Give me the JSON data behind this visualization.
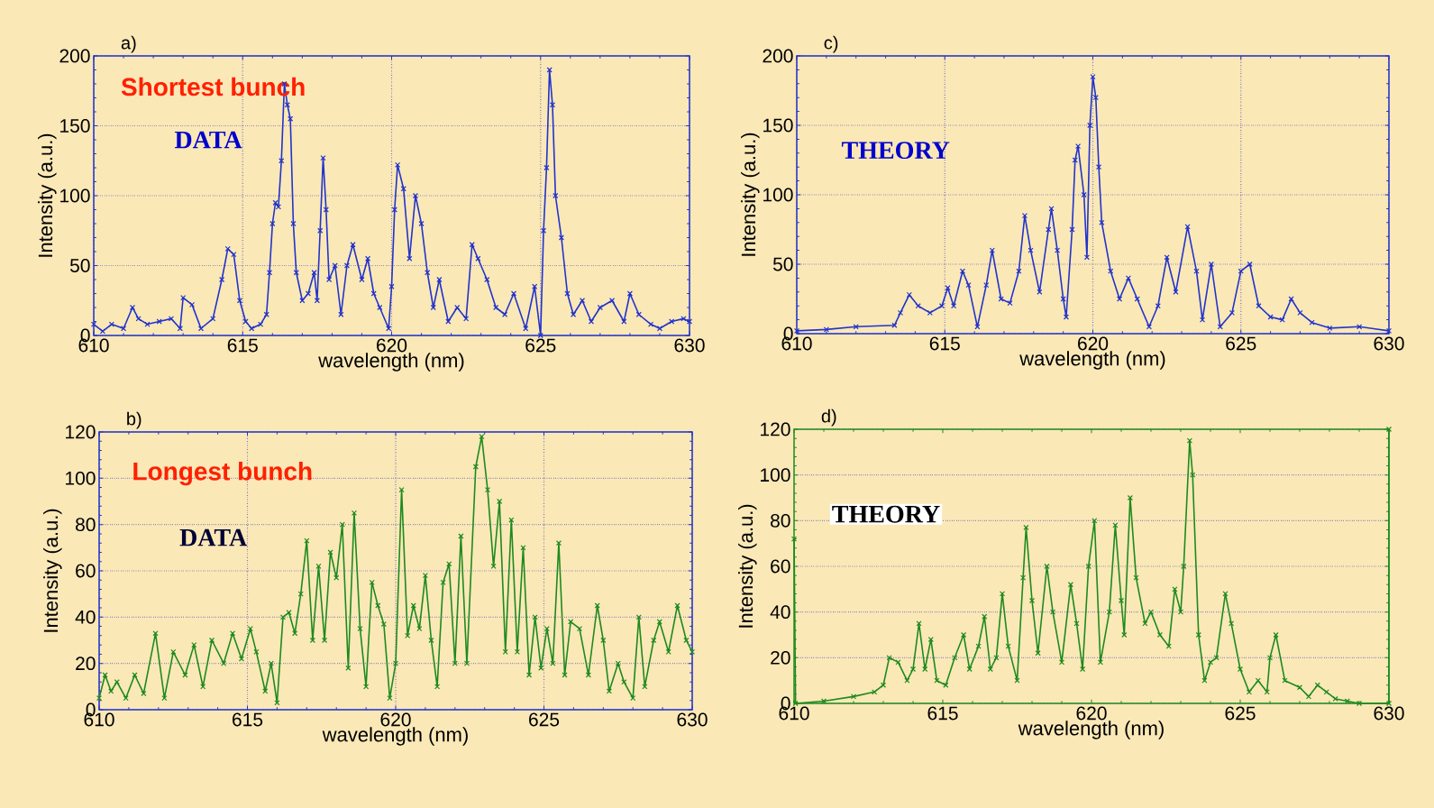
{
  "chart_data": [
    {
      "type": "line",
      "xlabel": "wavelength (nm)",
      "ylabel": "Intensity (a.u.)",
      "annotations": [
        "a)",
        "Shortest bunch",
        "DATA"
      ],
      "xlim": [
        610,
        630
      ],
      "ylim": [
        0,
        200
      ],
      "xticks": [
        610,
        615,
        620,
        625,
        630
      ],
      "yticks": [
        0,
        50,
        100,
        150,
        200
      ],
      "grid": true,
      "marker": "cross",
      "line_style": "solid",
      "x": [
        610.0,
        610.3,
        610.6,
        611.0,
        611.3,
        611.5,
        611.8,
        612.2,
        612.6,
        612.9,
        613.0,
        613.3,
        613.6,
        614.0,
        614.3,
        614.5,
        614.7,
        614.9,
        615.1,
        615.3,
        615.6,
        615.8,
        615.9,
        616.0,
        616.1,
        616.2,
        616.3,
        616.4,
        616.5,
        616.6,
        616.7,
        616.8,
        617.0,
        617.2,
        617.4,
        617.5,
        617.6,
        617.7,
        617.8,
        617.9,
        618.1,
        618.3,
        618.5,
        618.7,
        619.0,
        619.2,
        619.4,
        619.6,
        619.9,
        620.0,
        620.1,
        620.2,
        620.4,
        620.6,
        620.8,
        621.0,
        621.2,
        621.4,
        621.6,
        621.9,
        622.2,
        622.5,
        622.7,
        622.9,
        623.2,
        623.5,
        623.8,
        624.1,
        624.5,
        624.8,
        625.0,
        625.1,
        625.2,
        625.3,
        625.4,
        625.5,
        625.7,
        625.9,
        626.1,
        626.4,
        626.7,
        627.0,
        627.4,
        627.8,
        628.0,
        628.3,
        628.7,
        629.0,
        629.4,
        629.8,
        630.0
      ],
      "series": [
        {
          "color": "#2233cc",
          "values": [
            8,
            3,
            8,
            5,
            20,
            12,
            8,
            10,
            12,
            5,
            27,
            22,
            5,
            12,
            40,
            62,
            58,
            25,
            10,
            5,
            8,
            15,
            45,
            80,
            95,
            92,
            125,
            180,
            165,
            155,
            80,
            45,
            25,
            30,
            45,
            25,
            75,
            127,
            90,
            40,
            50,
            15,
            50,
            65,
            40,
            55,
            30,
            20,
            5,
            35,
            90,
            122,
            105,
            55,
            100,
            80,
            45,
            20,
            40,
            10,
            20,
            12,
            65,
            55,
            40,
            20,
            15,
            30,
            5,
            35,
            0,
            75,
            120,
            190,
            165,
            100,
            70,
            30,
            15,
            25,
            10,
            20,
            25,
            10,
            30,
            15,
            8,
            5,
            10,
            12,
            10
          ]
        }
      ]
    },
    {
      "type": "line",
      "xlabel": "wavelength (nm)",
      "ylabel": "Intensity (a.u.)",
      "annotations": [
        "c)",
        "THEORY"
      ],
      "xlim": [
        610,
        630
      ],
      "ylim": [
        0,
        200
      ],
      "xticks": [
        610,
        615,
        620,
        625,
        630
      ],
      "yticks": [
        0,
        50,
        100,
        150,
        200
      ],
      "grid": true,
      "marker": "cross",
      "line_style": "solid",
      "x": [
        610,
        611,
        612,
        613.3,
        613.5,
        613.8,
        614.1,
        614.5,
        614.9,
        615.1,
        615.3,
        615.6,
        615.8,
        616.1,
        616.4,
        616.6,
        616.9,
        617.2,
        617.5,
        617.7,
        617.9,
        618.2,
        618.5,
        618.6,
        618.8,
        619.0,
        619.1,
        619.3,
        619.4,
        619.5,
        619.7,
        619.8,
        619.9,
        620.0,
        620.1,
        620.2,
        620.3,
        620.6,
        620.9,
        621.2,
        621.5,
        621.9,
        622.2,
        622.5,
        622.8,
        623.2,
        623.5,
        623.7,
        624.0,
        624.3,
        624.7,
        625.0,
        625.3,
        625.6,
        626.0,
        626.4,
        626.7,
        627.0,
        627.4,
        628.0,
        629,
        630
      ],
      "series": [
        {
          "color": "#2233cc",
          "values": [
            2,
            3,
            5,
            6,
            15,
            28,
            20,
            15,
            20,
            33,
            20,
            45,
            35,
            5,
            35,
            60,
            25,
            22,
            45,
            85,
            60,
            30,
            75,
            90,
            60,
            25,
            12,
            75,
            125,
            135,
            100,
            55,
            150,
            185,
            170,
            120,
            80,
            45,
            25,
            40,
            25,
            5,
            20,
            55,
            30,
            77,
            45,
            10,
            50,
            5,
            15,
            45,
            50,
            20,
            12,
            10,
            25,
            15,
            8,
            4,
            5,
            2
          ]
        }
      ]
    },
    {
      "type": "line",
      "xlabel": "wavelength (nm)",
      "ylabel": "Intensity (a.u.)",
      "annotations": [
        "b)",
        "Longest bunch",
        "DATA"
      ],
      "xlim": [
        610,
        630
      ],
      "ylim": [
        0,
        120
      ],
      "xticks": [
        610,
        615,
        620,
        625,
        630
      ],
      "yticks": [
        0,
        20,
        40,
        60,
        80,
        100,
        120
      ],
      "grid": true,
      "marker": "cross",
      "line_style": "solid",
      "x": [
        610.0,
        610.2,
        610.4,
        610.6,
        610.9,
        611.2,
        611.5,
        611.9,
        612.2,
        612.5,
        612.9,
        613.2,
        613.5,
        613.8,
        614.2,
        614.5,
        614.8,
        615.1,
        615.3,
        615.6,
        615.8,
        616.0,
        616.2,
        616.4,
        616.6,
        616.8,
        617.0,
        617.2,
        617.4,
        617.6,
        617.8,
        618.0,
        618.2,
        618.4,
        618.6,
        618.8,
        619.0,
        619.2,
        619.4,
        619.6,
        619.8,
        620.0,
        620.2,
        620.4,
        620.6,
        620.8,
        621.0,
        621.2,
        621.4,
        621.6,
        621.8,
        622.0,
        622.2,
        622.4,
        622.7,
        622.9,
        623.1,
        623.3,
        623.5,
        623.7,
        623.9,
        624.1,
        624.3,
        624.5,
        624.7,
        624.9,
        625.1,
        625.3,
        625.5,
        625.7,
        625.9,
        626.2,
        626.5,
        626.8,
        627.0,
        627.2,
        627.5,
        627.7,
        628.0,
        628.2,
        628.4,
        628.7,
        628.9,
        629.2,
        629.5,
        629.8,
        630.0
      ],
      "series": [
        {
          "color": "#1e8a1e",
          "values": [
            5,
            15,
            8,
            12,
            5,
            15,
            7,
            33,
            5,
            25,
            15,
            28,
            10,
            30,
            20,
            33,
            22,
            35,
            25,
            8,
            20,
            3,
            40,
            42,
            33,
            50,
            73,
            30,
            62,
            30,
            68,
            57,
            80,
            18,
            85,
            35,
            10,
            55,
            45,
            37,
            5,
            20,
            95,
            32,
            45,
            35,
            58,
            30,
            10,
            55,
            63,
            20,
            75,
            20,
            105,
            118,
            95,
            62,
            90,
            25,
            82,
            25,
            70,
            15,
            40,
            18,
            35,
            20,
            72,
            15,
            38,
            35,
            15,
            45,
            30,
            8,
            20,
            12,
            5,
            40,
            10,
            30,
            38,
            25,
            45,
            30,
            25
          ]
        }
      ]
    },
    {
      "type": "line",
      "xlabel": "wavelength (nm)",
      "ylabel": "Intensity (a.u.)",
      "annotations": [
        "d)",
        "THEORY"
      ],
      "xlim": [
        610,
        630
      ],
      "ylim": [
        0,
        120
      ],
      "xticks": [
        610,
        615,
        620,
        625,
        630
      ],
      "yticks": [
        0,
        20,
        40,
        60,
        80,
        100,
        120
      ],
      "grid": "y",
      "marker": "cross",
      "line_style": "solid",
      "x": [
        610.0,
        610.05,
        611,
        612,
        612.7,
        613.0,
        613.2,
        613.5,
        613.8,
        614.0,
        614.2,
        614.4,
        614.6,
        614.8,
        615.1,
        615.4,
        615.7,
        615.9,
        616.2,
        616.4,
        616.6,
        616.8,
        617.0,
        617.2,
        617.5,
        617.7,
        617.8,
        618.0,
        618.2,
        618.5,
        618.7,
        619.0,
        619.3,
        619.5,
        619.7,
        619.9,
        620.1,
        620.3,
        620.6,
        620.8,
        621.0,
        621.1,
        621.3,
        621.5,
        621.8,
        622.0,
        622.3,
        622.6,
        622.8,
        623.0,
        623.1,
        623.3,
        623.4,
        623.6,
        623.8,
        624.0,
        624.2,
        624.5,
        624.7,
        625.0,
        625.3,
        625.6,
        625.9,
        626.0,
        626.2,
        626.5,
        627.0,
        627.3,
        627.6,
        627.9,
        628.2,
        628.6,
        629.0,
        630.0,
        630.0
      ],
      "series": [
        {
          "color": "#1e8a1e",
          "values": [
            72,
            0,
            1,
            3,
            5,
            8,
            20,
            18,
            10,
            15,
            35,
            15,
            28,
            10,
            8,
            20,
            30,
            15,
            25,
            38,
            15,
            20,
            48,
            25,
            10,
            55,
            77,
            45,
            22,
            60,
            40,
            18,
            52,
            35,
            15,
            60,
            80,
            18,
            40,
            78,
            45,
            30,
            90,
            55,
            35,
            40,
            30,
            25,
            50,
            40,
            60,
            115,
            100,
            30,
            10,
            18,
            20,
            48,
            35,
            15,
            5,
            10,
            5,
            20,
            30,
            10,
            7,
            3,
            8,
            5,
            2,
            1,
            0,
            0,
            120
          ]
        }
      ]
    }
  ]
}
